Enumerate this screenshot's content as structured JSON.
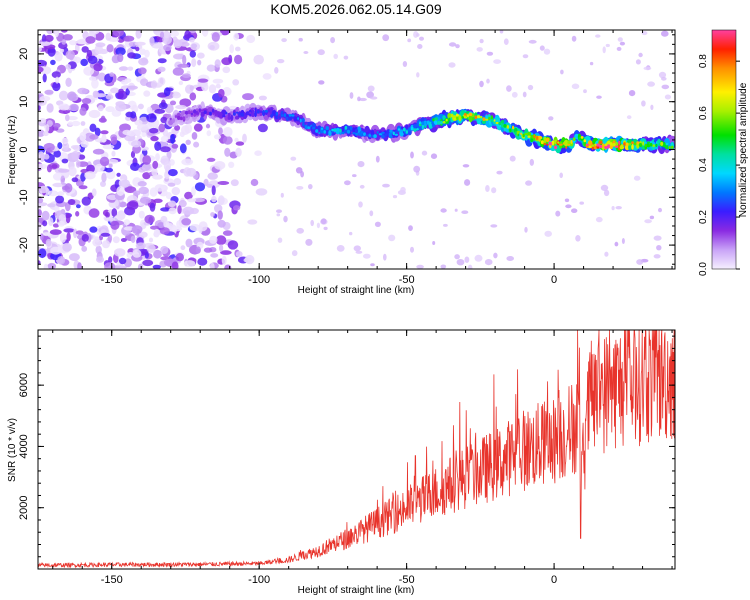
{
  "title": "KOM5.2026.062.05.14.G09",
  "chart_data": [
    {
      "type": "heatmap",
      "name": "spectrogram",
      "xlabel": "Height of straight line (km)",
      "ylabel": "Frequency (Hz)",
      "xlim": [
        -175,
        41
      ],
      "ylim": [
        -25,
        25
      ],
      "xticks": [
        -150,
        -100,
        -50,
        0
      ],
      "yticks": [
        -20,
        -10,
        0,
        10,
        20
      ],
      "xtick_labels": [
        "-150",
        "-100",
        "-50",
        "0"
      ],
      "ytick_labels": [
        "-20",
        "-10",
        "0",
        "10",
        "20"
      ],
      "colorbar": {
        "label": "Normalized spectral amplitude",
        "range": [
          0,
          0.92
        ],
        "ticks": [
          0,
          0.2,
          0.4,
          0.6,
          0.8
        ],
        "tick_labels": [
          "0.0",
          "0.2",
          "0.4",
          "0.6",
          "0.8"
        ]
      },
      "ridge": {
        "x": [
          -130,
          -120,
          -110,
          -100,
          -90,
          -80,
          -70,
          -60,
          -50,
          -40,
          -30,
          -20,
          -10,
          0,
          5,
          8,
          12,
          20,
          30,
          41
        ],
        "freq": [
          6,
          8,
          7,
          8,
          7,
          4,
          4,
          3,
          4,
          6,
          7,
          6,
          3,
          1,
          1,
          3,
          1,
          1,
          1,
          1
        ],
        "amplitude": [
          0.12,
          0.18,
          0.2,
          0.22,
          0.25,
          0.3,
          0.35,
          0.28,
          0.35,
          0.45,
          0.7,
          0.55,
          0.6,
          0.85,
          0.7,
          0.45,
          0.8,
          0.85,
          0.6,
          0.45
        ]
      },
      "noise_x_range": [
        -175,
        -95
      ]
    },
    {
      "type": "line",
      "name": "snr",
      "xlabel": "Height of straight line (km)",
      "ylabel": "SNR (10 * v/v)",
      "xlim": [
        -175,
        41
      ],
      "ylim": [
        0,
        7800
      ],
      "xticks": [
        -150,
        -100,
        -50,
        0
      ],
      "yticks": [
        2000,
        4000,
        6000
      ],
      "xtick_labels": [
        "-150",
        "-100",
        "-50",
        "0"
      ],
      "ytick_labels": [
        "2000",
        "4000",
        "6000"
      ],
      "color": "#e8342c",
      "envelope_x": [
        -175,
        -150,
        -120,
        -100,
        -90,
        -80,
        -70,
        -60,
        -50,
        -40,
        -30,
        -20,
        -10,
        0,
        5,
        8,
        10,
        12,
        20,
        30,
        41
      ],
      "envelope_y": [
        120,
        140,
        150,
        180,
        300,
        600,
        1000,
        1500,
        2000,
        2500,
        3000,
        3400,
        3900,
        4200,
        4500,
        4800,
        3500,
        5500,
        5900,
        6200,
        6350
      ],
      "spikes": [
        {
          "x": -32,
          "y": 5450
        },
        {
          "x": -47,
          "y": 3700
        },
        {
          "x": -20,
          "y": 4200
        },
        {
          "x": 8,
          "y": 7800
        },
        {
          "x": 9,
          "y": 1000
        },
        {
          "x": 16,
          "y": 6700
        },
        {
          "x": -12,
          "y": 4900
        }
      ]
    }
  ]
}
